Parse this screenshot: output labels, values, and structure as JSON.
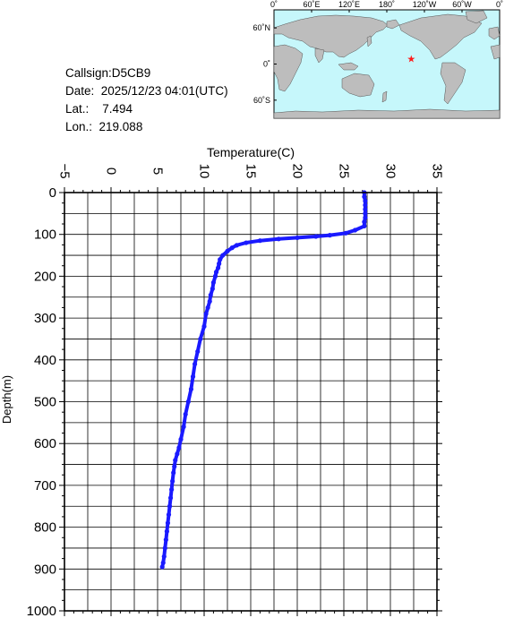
{
  "info": {
    "callsign": "Callsign:D5CB9",
    "date": "Date:  2025/12/23 04:01(UTC)",
    "lat": "Lat.:    7.494",
    "lon": "Lon.:  219.088"
  },
  "map": {
    "lon_labels": [
      "0˚",
      "60˚E",
      "120˚E",
      "180˚",
      "120˚W",
      "60˚W",
      "0˚"
    ],
    "lat_labels": [
      "60˚N",
      "0˚",
      "60˚S"
    ],
    "colors": {
      "ocean": "#c6f7fb",
      "land": "#bdbdbd",
      "marker": "#ff1a1a"
    },
    "marker": {
      "lat": 7.494,
      "lon": 219.088,
      "symbol": "★"
    }
  },
  "chart_data": {
    "type": "line",
    "title": "",
    "xlabel": "Temperature(C)",
    "ylabel": "Depth(m)",
    "xlim": [
      -5,
      35
    ],
    "ylim": [
      0,
      1000
    ],
    "y_inverted": true,
    "x_ticks": [
      -5,
      0,
      5,
      10,
      15,
      20,
      25,
      30,
      35
    ],
    "y_ticks": [
      0,
      100,
      200,
      300,
      400,
      500,
      600,
      700,
      800,
      900,
      1000
    ],
    "grid": true,
    "color": "#1a1aff",
    "series": [
      {
        "x": [
          27.2,
          27.2,
          27.3,
          27.3,
          27.3,
          27.3,
          27.3,
          27.2,
          27.2,
          26.2,
          25.2,
          23.5,
          22.0,
          20.0,
          18.0,
          16.0,
          14.5,
          13.5,
          13.0,
          12.5,
          12.0,
          11.7,
          11.6,
          11.5,
          11.3,
          11.2,
          11.0,
          10.9,
          10.7,
          10.6,
          10.4,
          10.2,
          10.0,
          9.6,
          9.3,
          9.0,
          8.8,
          8.6,
          8.3,
          8.0,
          7.8,
          7.5,
          7.3,
          7.1,
          6.9,
          6.8,
          6.7,
          6.6,
          6.5,
          6.4,
          6.3,
          6.2,
          6.1,
          6.0,
          5.9,
          5.8,
          5.7,
          5.6,
          5.5
        ],
        "y": [
          0,
          10,
          20,
          30,
          40,
          50,
          60,
          70,
          80,
          90,
          97,
          102,
          105,
          108,
          111,
          115,
          120,
          126,
          132,
          140,
          150,
          160,
          170,
          180,
          190,
          200,
          215,
          230,
          245,
          260,
          275,
          290,
          320,
          350,
          380,
          410,
          440,
          470,
          500,
          530,
          560,
          590,
          610,
          625,
          640,
          655,
          670,
          690,
          710,
          730,
          750,
          770,
          790,
          810,
          830,
          850,
          870,
          885,
          895
        ]
      }
    ]
  }
}
